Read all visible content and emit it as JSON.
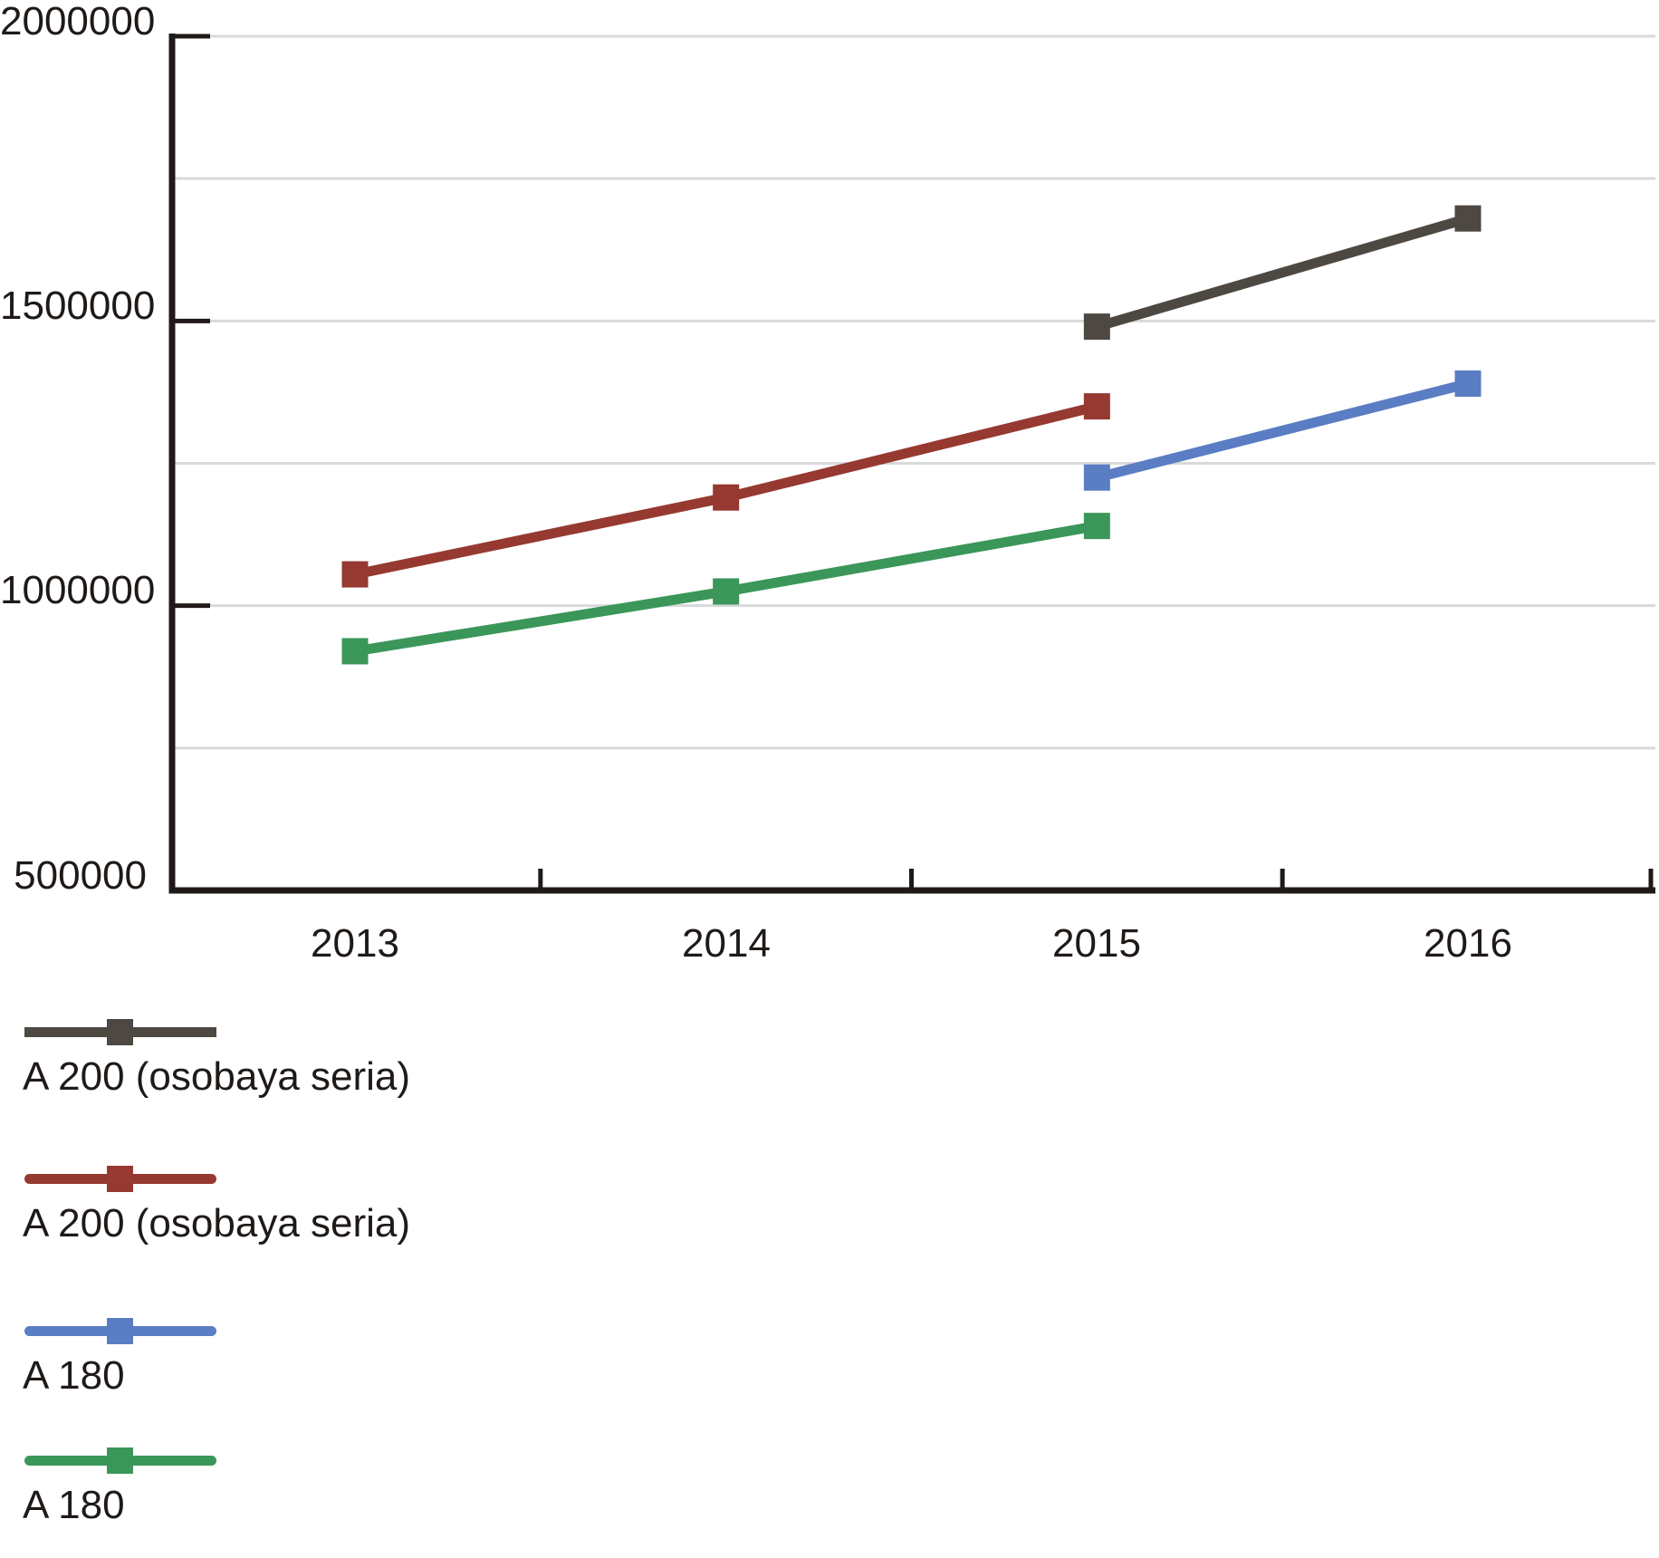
{
  "chart_data": {
    "type": "line",
    "title": "",
    "xlabel": "",
    "ylabel": "",
    "categories": [
      2013,
      2014,
      2015,
      2016
    ],
    "x_tick_labels": [
      "2013",
      "2014",
      "2015",
      "2016"
    ],
    "y_tick_labels": [
      "2000000",
      "1500000",
      "1000000",
      "500000"
    ],
    "y_tick_values": [
      2000000,
      1500000,
      1000000,
      500000
    ],
    "ylim": [
      500000,
      2000000
    ],
    "y_major_step": 500000,
    "y_minor_step": 250000,
    "grid": "horizontal",
    "legend_position": "bottom-left",
    "series": [
      {
        "name": "A 200 (osobaya seria)",
        "color": "#4d4842",
        "marker": "square",
        "linecap": "butt",
        "points": [
          {
            "x": 2015,
            "y": 1490000
          },
          {
            "x": 2016,
            "y": 1680000
          }
        ]
      },
      {
        "name": "A 200 (osobaya seria)",
        "color": "#963931",
        "marker": "square",
        "linecap": "round",
        "points": [
          {
            "x": 2013,
            "y": 1055000
          },
          {
            "x": 2014,
            "y": 1190000
          },
          {
            "x": 2015,
            "y": 1350000
          }
        ]
      },
      {
        "name": "A 180",
        "color": "#5a7dc3",
        "marker": "square",
        "linecap": "round",
        "points": [
          {
            "x": 2015,
            "y": 1225000
          },
          {
            "x": 2016,
            "y": 1390000
          }
        ]
      },
      {
        "name": "A 180",
        "color": "#3b9659",
        "marker": "square",
        "linecap": "round",
        "points": [
          {
            "x": 2013,
            "y": 920000
          },
          {
            "x": 2014,
            "y": 1025000
          },
          {
            "x": 2015,
            "y": 1140000
          }
        ]
      }
    ]
  }
}
